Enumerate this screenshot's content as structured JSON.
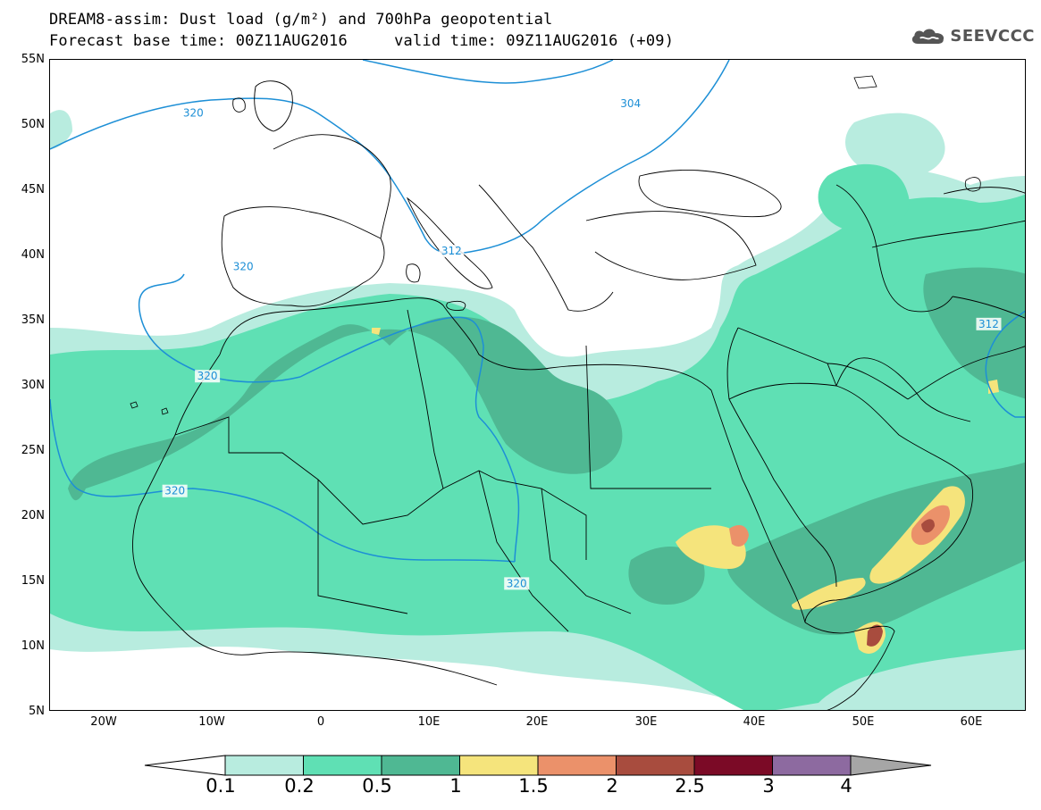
{
  "title": {
    "line1": "DREAM8-assim: Dust load (g/m²) and 700hPa geopotential",
    "line2": "Forecast base time: 00Z11AUG2016     valid time: 09Z11AUG2016 (+09)"
  },
  "logo": {
    "text": "SEEVCCC",
    "icon": "cloud-icon"
  },
  "map": {
    "lon_range": [
      -25,
      65
    ],
    "lat_range": [
      5,
      55
    ],
    "lat_labels": [
      "55N",
      "50N",
      "45N",
      "40N",
      "35N",
      "30N",
      "25N",
      "20N",
      "15N",
      "10N",
      "5N"
    ],
    "lat_values": [
      55,
      50,
      45,
      40,
      35,
      30,
      25,
      20,
      15,
      10,
      5
    ],
    "lon_labels": [
      "20W",
      "10W",
      "0",
      "10E",
      "20E",
      "30E",
      "40E",
      "50E",
      "60E"
    ],
    "lon_values": [
      -20,
      -10,
      0,
      10,
      20,
      30,
      40,
      50,
      60
    ],
    "contour_color": "#1d8fd6",
    "contour_labels": [
      {
        "text": "320",
        "lon": -11.8,
        "lat": 50.8
      },
      {
        "text": "304",
        "lon": 28.5,
        "lat": 51.5
      },
      {
        "text": "312",
        "lon": 12.0,
        "lat": 40.2
      },
      {
        "text": "320",
        "lon": -7.2,
        "lat": 39.0
      },
      {
        "text": "320",
        "lon": -10.5,
        "lat": 30.6
      },
      {
        "text": "320",
        "lon": -13.5,
        "lat": 21.8
      },
      {
        "text": "320",
        "lon": 18.0,
        "lat": 14.7
      },
      {
        "text": "312",
        "lon": 61.5,
        "lat": 34.6
      }
    ]
  },
  "legend": {
    "labels": [
      "0.1",
      "0.2",
      "0.5",
      "1",
      "1.5",
      "2",
      "2.5",
      "3",
      "4"
    ],
    "colors": [
      "#b8ecdf",
      "#5fe0b4",
      "#4fb893",
      "#f5e47c",
      "#eb916a",
      "#a84c3e",
      "#7b0a26",
      "#8d6aa0"
    ],
    "under_color": "#ffffff",
    "over_color": "#a6a6a6"
  }
}
